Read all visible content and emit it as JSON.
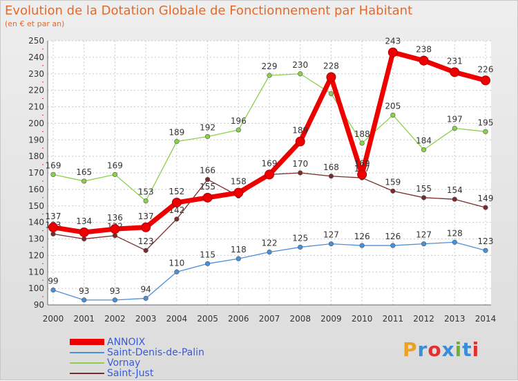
{
  "header": {
    "title": "Evolution de la Dotation Globale de Fonctionnement par Habitant",
    "subtitle": "(en € et par an)"
  },
  "logo": {
    "text": "Proxiti",
    "colors": [
      "#f0a020",
      "#3c8cd8",
      "#e03030",
      "#3c8cd8",
      "#70b030",
      "#3c8cd8",
      "#e03030"
    ]
  },
  "chart_data": {
    "type": "line",
    "title": "Evolution de la Dotation Globale de Fonctionnement par Habitant",
    "subtitle": "(en € et par an)",
    "xlabel": "",
    "ylabel": "",
    "ylim": [
      90,
      250
    ],
    "y_ticks": [
      90,
      100,
      110,
      120,
      130,
      140,
      150,
      160,
      170,
      180,
      190,
      200,
      210,
      220,
      230,
      240,
      250
    ],
    "categories": [
      "2000",
      "2001",
      "2002",
      "2003",
      "2004",
      "2005",
      "2006",
      "2007",
      "2008",
      "2009",
      "2010",
      "2011",
      "2012",
      "2013",
      "2014"
    ],
    "grid": true,
    "series": [
      {
        "name": "Vornay",
        "color": "#8cd04a",
        "values": [
          169,
          165,
          169,
          153,
          189,
          192,
          196,
          229,
          230,
          218,
          188,
          205,
          184,
          197,
          195
        ],
        "labels": [
          "169",
          "165",
          "169",
          "153",
          "189",
          "192",
          "196",
          "229",
          "230",
          "",
          "188",
          "205",
          "184",
          "197",
          "195"
        ]
      },
      {
        "name": "Saint-Just",
        "color": "#7a2a2a",
        "values": [
          133,
          130,
          132,
          123,
          142,
          166,
          156,
          169,
          170,
          168,
          167,
          159,
          155,
          154,
          149
        ],
        "labels": [
          "133",
          "",
          "132",
          "123",
          "142",
          "166",
          "",
          "",
          "170",
          "168",
          "167",
          "159",
          "155",
          "154",
          "149"
        ]
      },
      {
        "name": "Saint-Denis-de-Palin",
        "color": "#4a90d8",
        "values": [
          99,
          93,
          93,
          94,
          110,
          115,
          118,
          122,
          125,
          127,
          126,
          126,
          127,
          128,
          123
        ],
        "labels": [
          "99",
          "93",
          "93",
          "94",
          "110",
          "115",
          "118",
          "122",
          "125",
          "127",
          "126",
          "126",
          "127",
          "128",
          "123"
        ]
      },
      {
        "name": "ANNOIX",
        "color": "#ee0000",
        "values": [
          137,
          134,
          136,
          137,
          152,
          155,
          158,
          169,
          189,
          228,
          169,
          243,
          238,
          231,
          226
        ],
        "labels": [
          "137",
          "134",
          "136",
          "137",
          "152",
          "155",
          "158",
          "169",
          "189",
          "228",
          "169",
          "243",
          "238",
          "231",
          "226"
        ]
      }
    ],
    "legend": [
      "ANNOIX",
      "Saint-Denis-de-Palin",
      "Vornay",
      "Saint-Just"
    ],
    "legend_position": "bottom-left"
  }
}
